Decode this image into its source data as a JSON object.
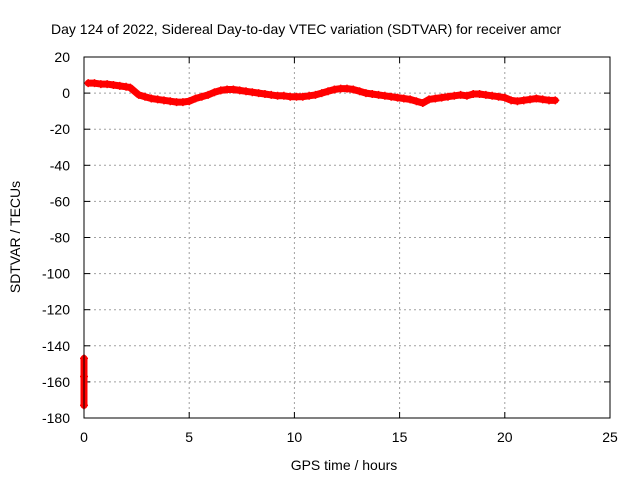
{
  "chart_data": {
    "type": "scatter",
    "title": "Day 124 of 2022, Sidereal Day-to-day VTEC variation (SDTVAR) for receiver amcr",
    "xlabel": "GPS time / hours",
    "ylabel": "SDTVAR / TECUs",
    "xlim": [
      0,
      25
    ],
    "ylim": [
      -180,
      20
    ],
    "xticks": [
      0,
      5,
      10,
      15,
      20,
      25
    ],
    "yticks": [
      20,
      0,
      -20,
      -40,
      -60,
      -80,
      -100,
      -120,
      -140,
      -160,
      -180
    ],
    "grid": true,
    "marker": "plus",
    "series": [
      {
        "name": "SDTVAR",
        "color": "#ff0000",
        "x": [
          0.2,
          0.5,
          0.8,
          1.1,
          1.4,
          1.7,
          2.0,
          2.2,
          2.6,
          2.9,
          3.2,
          3.5,
          3.8,
          4.1,
          4.4,
          4.7,
          5.0,
          5.3,
          5.6,
          5.9,
          6.2,
          6.5,
          6.8,
          7.1,
          7.4,
          7.7,
          8.0,
          8.3,
          8.6,
          8.9,
          9.2,
          9.5,
          9.8,
          10.1,
          10.4,
          10.7,
          11.0,
          11.3,
          11.6,
          11.9,
          12.2,
          12.5,
          12.8,
          13.1,
          13.4,
          13.7,
          14.0,
          14.3,
          14.6,
          14.9,
          15.2,
          15.5,
          15.8,
          16.1,
          16.4,
          16.7,
          17.0,
          17.3,
          17.6,
          17.9,
          18.2,
          18.5,
          18.8,
          19.1,
          19.4,
          19.7,
          20.0,
          20.3,
          20.6,
          20.9,
          21.2,
          21.5,
          21.8,
          22.1,
          22.4,
          0.0,
          0.0,
          0.0
        ],
        "y": [
          5.5,
          5.5,
          5.0,
          5.0,
          4.5,
          4.0,
          3.5,
          3.0,
          -1.0,
          -2.0,
          -3.0,
          -3.5,
          -4.0,
          -4.5,
          -5.0,
          -5.0,
          -4.5,
          -3.0,
          -2.0,
          -1.0,
          0.5,
          1.5,
          2.0,
          2.0,
          1.5,
          1.0,
          0.5,
          0.0,
          -0.5,
          -1.0,
          -1.5,
          -1.5,
          -2.0,
          -2.0,
          -2.0,
          -1.5,
          -1.0,
          0.0,
          1.0,
          2.0,
          2.5,
          2.5,
          2.0,
          1.0,
          0.0,
          -0.5,
          -1.0,
          -1.5,
          -2.0,
          -2.5,
          -3.0,
          -3.5,
          -4.5,
          -5.5,
          -3.5,
          -3.0,
          -2.5,
          -2.0,
          -1.5,
          -1.0,
          -1.5,
          -0.5,
          -0.5,
          -1.0,
          -1.5,
          -2.0,
          -2.5,
          -4.0,
          -4.5,
          -4.0,
          -3.5,
          -3.0,
          -3.5,
          -4.0,
          -4.0,
          -147.0,
          -157.0,
          -173.0
        ]
      }
    ]
  }
}
